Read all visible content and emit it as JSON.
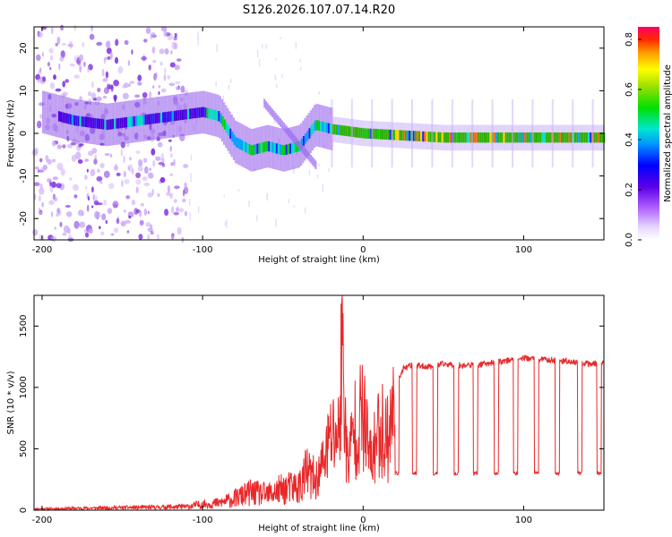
{
  "title": "S126.2026.107.07.14.R20",
  "chart_data": [
    {
      "type": "heatmap",
      "name": "spectrogram",
      "xlabel": "Height of straight line (km)",
      "ylabel": "Frequency (Hz)",
      "xlim": [
        -205,
        150
      ],
      "ylim": [
        -25,
        25
      ],
      "xticks": [
        -200,
        -100,
        0,
        100
      ],
      "yticks": [
        20,
        10,
        0,
        -10,
        -20
      ],
      "colorbar": {
        "label": "Normalized spectral amplitude",
        "range": [
          0,
          0.85
        ],
        "ticks": [
          0.0,
          0.2,
          0.4,
          0.6,
          0.8
        ]
      },
      "signal_track": [
        {
          "x": -200,
          "f": 5
        },
        {
          "x": -180,
          "f": 3
        },
        {
          "x": -160,
          "f": 2
        },
        {
          "x": -140,
          "f": 3
        },
        {
          "x": -120,
          "f": 4
        },
        {
          "x": -100,
          "f": 5
        },
        {
          "x": -90,
          "f": 4
        },
        {
          "x": -80,
          "f": -2
        },
        {
          "x": -70,
          "f": -4
        },
        {
          "x": -60,
          "f": -3
        },
        {
          "x": -50,
          "f": -4
        },
        {
          "x": -40,
          "f": -3
        },
        {
          "x": -30,
          "f": 2
        },
        {
          "x": -20,
          "f": 1
        },
        {
          "x": 0,
          "f": 0
        },
        {
          "x": 50,
          "f": -1
        },
        {
          "x": 100,
          "f": -1
        },
        {
          "x": 150,
          "f": -1
        }
      ]
    },
    {
      "type": "line",
      "name": "snr",
      "xlabel": "Height of straight line (km)",
      "ylabel": "SNR (10 * v/v)",
      "xlim": [
        -205,
        150
      ],
      "ylim": [
        0,
        1750
      ],
      "xticks": [
        -200,
        -100,
        0,
        100
      ],
      "yticks": [
        0,
        500,
        1000,
        1500
      ],
      "color": "#e8282a",
      "series": [
        {
          "name": "SNR",
          "x": [
            -205,
            -180,
            -160,
            -130,
            -110,
            -100,
            -90,
            -80,
            -70,
            -60,
            -50,
            -40,
            -35,
            -30,
            -25,
            -20,
            -15,
            -13,
            -10,
            -5,
            0,
            5,
            10,
            15,
            20,
            25,
            30,
            40,
            50,
            60,
            70,
            80,
            90,
            100,
            110,
            120,
            130,
            140,
            150
          ],
          "y": [
            10,
            15,
            20,
            25,
            30,
            50,
            60,
            100,
            150,
            130,
            180,
            200,
            320,
            250,
            450,
            700,
            750,
            1650,
            450,
            800,
            900,
            450,
            800,
            700,
            1000,
            1150,
            1180,
            1170,
            1190,
            1180,
            1180,
            1200,
            1220,
            1240,
            1230,
            1220,
            1210,
            1190,
            1200
          ]
        }
      ],
      "dips": {
        "x": [
          21,
          32,
          45,
          58,
          70,
          83,
          95,
          108,
          121,
          135,
          147
        ],
        "level": 300
      }
    }
  ]
}
